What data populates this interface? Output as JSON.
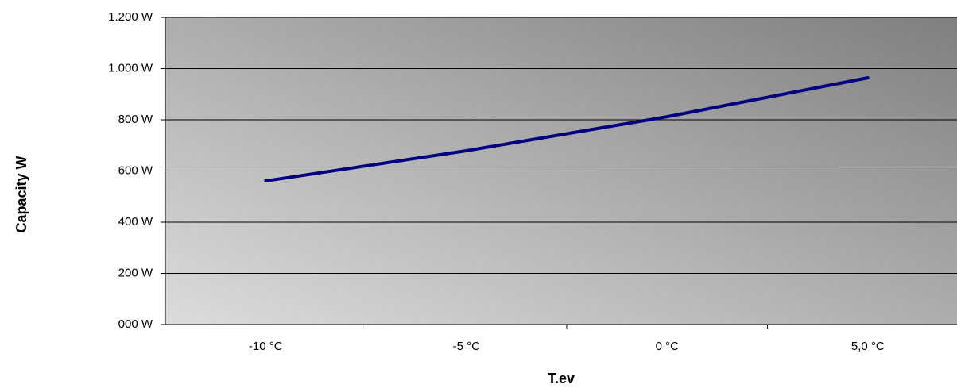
{
  "chart_data": {
    "type": "line",
    "x_label": "T.ev",
    "y_label": "Capacity W",
    "categories": [
      "-10 °C",
      "-5 °C",
      "0 °C",
      "5,0 °C"
    ],
    "series": [
      {
        "name": "Capacity",
        "color": "#000080",
        "values": [
          561,
          679,
          812,
          964
        ]
      }
    ],
    "ylim": [
      0,
      1200
    ],
    "yticks": [
      {
        "value": 0,
        "label": "000 W"
      },
      {
        "value": 200,
        "label": "200 W"
      },
      {
        "value": 400,
        "label": "400 W"
      },
      {
        "value": 600,
        "label": "600 W"
      },
      {
        "value": 800,
        "label": "800 W"
      },
      {
        "value": 1000,
        "label": "1.000 W"
      },
      {
        "value": 1200,
        "label": "1.200 W"
      }
    ],
    "grid": true
  }
}
